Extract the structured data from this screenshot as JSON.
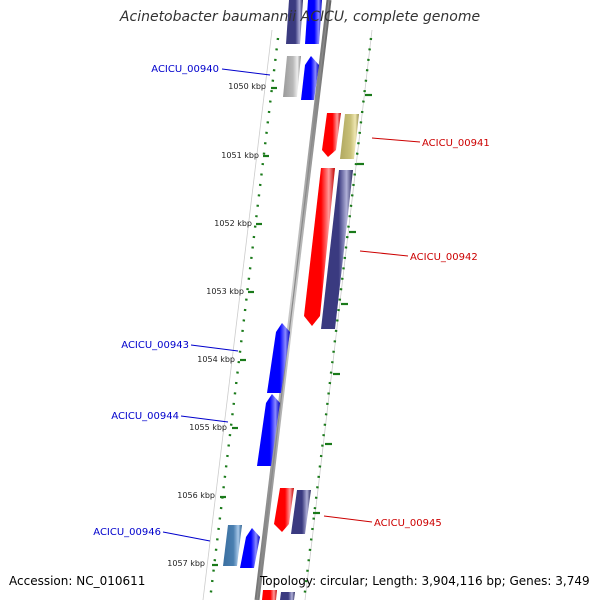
{
  "title": "Acinetobacter baumannii ACICU, complete genome",
  "accession": "Accession: NC_010611",
  "summary": "Topology: circular; Length: 3,904,116 bp; Genes: 3,749",
  "colors": {
    "backbone": "#888888",
    "tick": "#1a7a1a",
    "forward_label": "#0000cc",
    "reverse_label": "#cc0000"
  },
  "kbp_labels": [
    "1050 kbp",
    "1051 kbp",
    "1052 kbp",
    "1053 kbp",
    "1054 kbp",
    "1055 kbp",
    "1056 kbp",
    "1057 kbp"
  ],
  "gene_labels": [
    {
      "text": "ACICU_00940",
      "strand": "forward"
    },
    {
      "text": "ACICU_00941",
      "strand": "reverse"
    },
    {
      "text": "ACICU_00942",
      "strand": "reverse"
    },
    {
      "text": "ACICU_00943",
      "strand": "forward"
    },
    {
      "text": "ACICU_00944",
      "strand": "forward"
    },
    {
      "text": "ACICU_00945",
      "strand": "reverse"
    },
    {
      "text": "ACICU_00946",
      "strand": "forward"
    }
  ]
}
